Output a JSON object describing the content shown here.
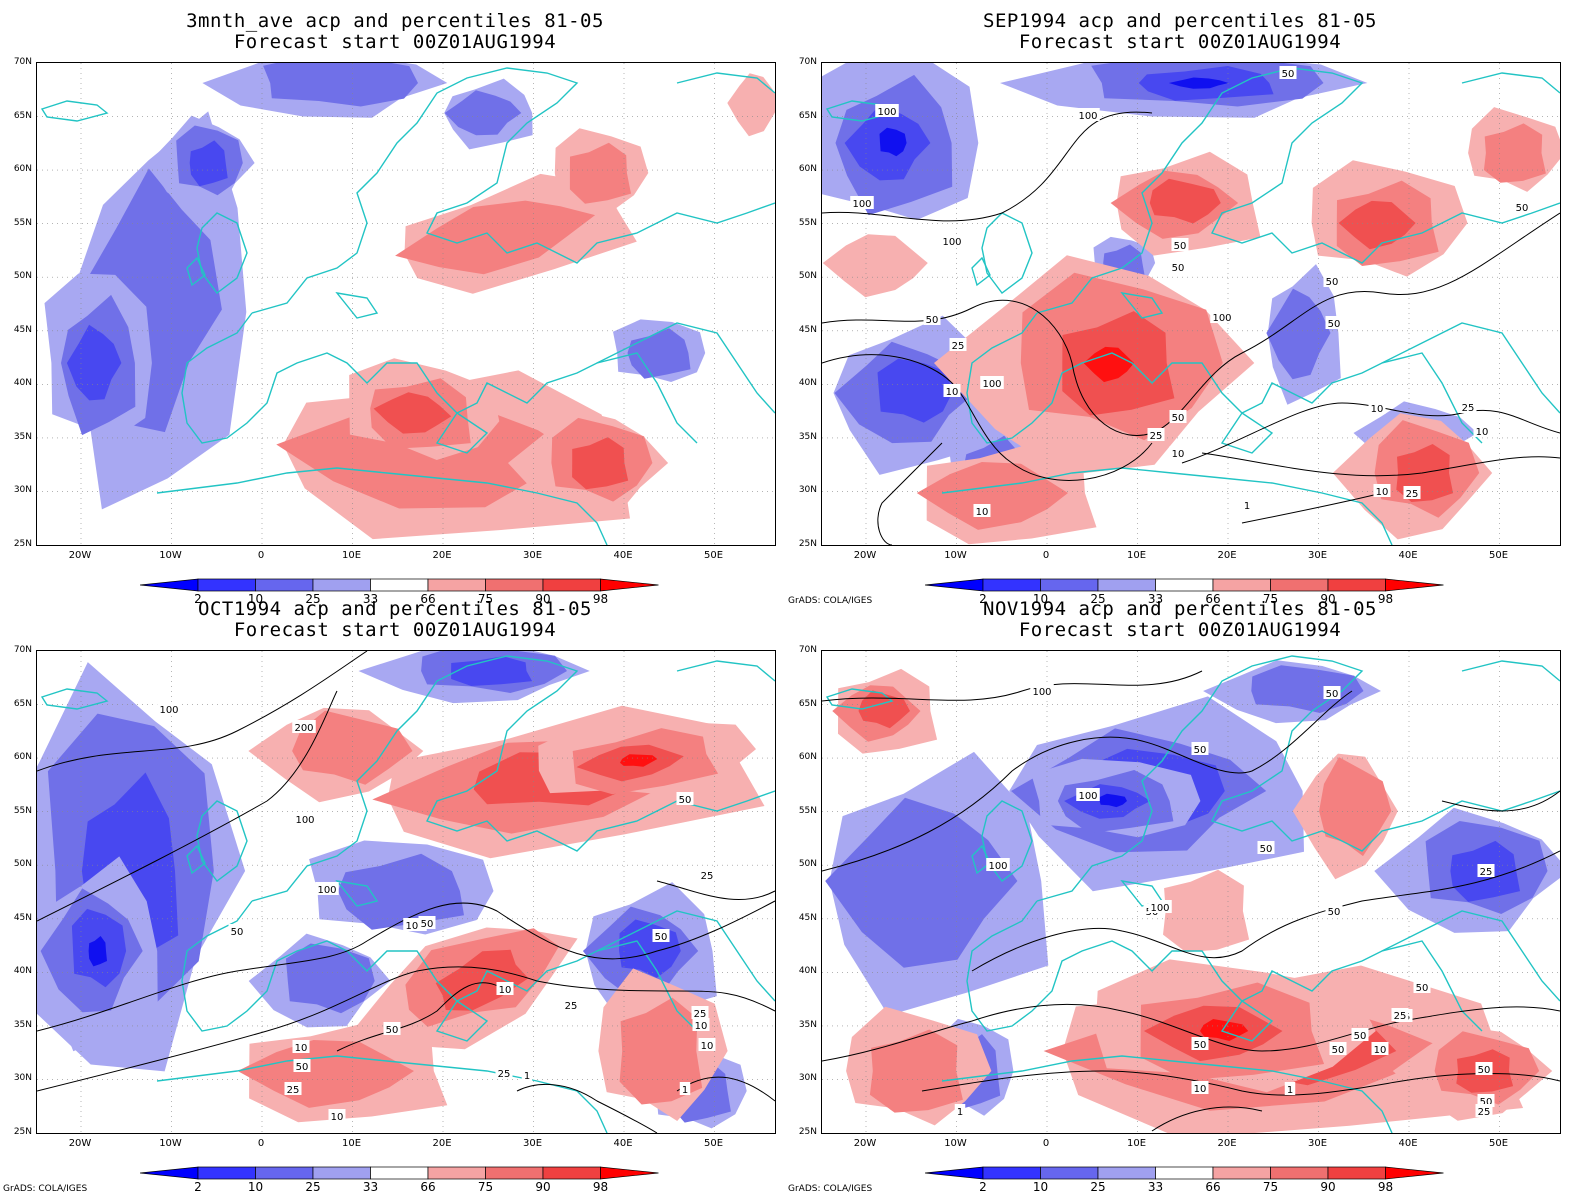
{
  "panels": [
    {
      "title_line1": "3mnth_ave acp and percentiles 81-05",
      "title_line2": "Forecast start 00Z01AUG1994",
      "credit": "",
      "contour_labels": []
    },
    {
      "title_line1": "SEP1994 acp and percentiles 81-05",
      "title_line2": "Forecast start 00Z01AUG1994",
      "credit": "GrADS: COLA/IGES",
      "contour_labels": [
        "50",
        "100",
        "100",
        "100",
        "100",
        "50",
        "50",
        "50",
        "50",
        "50",
        "100",
        "100",
        "50",
        "25",
        "10",
        "25",
        "10",
        "50",
        "25",
        "10",
        "10",
        "25",
        "10",
        "10",
        "1"
      ]
    },
    {
      "title_line1": "OCT1994 acp and percentiles 81-05",
      "title_line2": "Forecast start 00Z01AUG1994",
      "credit": "GrADS: COLA/IGES",
      "contour_labels": [
        "100",
        "200",
        "100",
        "50",
        "100",
        "100",
        "50",
        "50",
        "50",
        "25",
        "10",
        "25",
        "50",
        "25",
        "10",
        "25",
        "50",
        "25",
        "10",
        "10",
        "1",
        "1",
        "10"
      ]
    },
    {
      "title_line1": "NOV1994 acp and percentiles 81-05",
      "title_line2": "Forecast start 00Z01AUG1994",
      "credit": "GrADS: COLA/IGES",
      "contour_labels": [
        "100",
        "50",
        "50",
        "100",
        "50",
        "50",
        "100",
        "50",
        "25",
        "100",
        "50",
        "50",
        "50",
        "25",
        "25",
        "50",
        "50",
        "10",
        "10",
        "1",
        "1",
        "50",
        "25"
      ]
    }
  ],
  "lat_labels": [
    "70N",
    "65N",
    "60N",
    "55N",
    "50N",
    "45N",
    "40N",
    "35N",
    "30N",
    "25N"
  ],
  "lon_labels": [
    "20W",
    "10W",
    "0",
    "10E",
    "20E",
    "30E",
    "40E",
    "50E"
  ],
  "colorbar": {
    "labels": [
      "2",
      "10",
      "25",
      "33",
      "66",
      "75",
      "90",
      "98"
    ],
    "colors": [
      "#0000ff",
      "#3333ff",
      "#6666ee",
      "#a0a0f0",
      "#ffffff",
      "#f5a3a3",
      "#f07070",
      "#f04040",
      "#ff0000"
    ]
  },
  "colors": {
    "coast": "#22c4c4",
    "contour": "#000000",
    "blue_levels": [
      "#1010f0",
      "#4848f0",
      "#7070e8",
      "#a8a8f2"
    ],
    "red_levels": [
      "#f7b0b0",
      "#f48080",
      "#f05050",
      "#ff1010"
    ]
  },
  "icons": {
    "coastline": "coastline-outline",
    "colorbar_arrow": "triangle-arrow"
  }
}
